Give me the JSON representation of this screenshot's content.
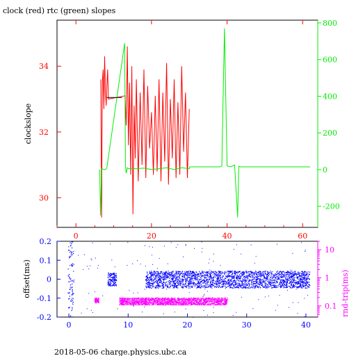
{
  "footer": "2018-05-06 charge.physics.ubc.ca",
  "colors": {
    "clock": "#ff0000",
    "rtc": "#00ee00",
    "offset": "#0000ff",
    "rndtrip": "#ff00ff",
    "black": "#000000"
  },
  "chart_data": [
    {
      "type": "line",
      "title": "clock (red) rtc (green) slopes",
      "xlabel": "",
      "ylabel": "clockslope",
      "y2label": "",
      "xlim": [
        -5,
        64
      ],
      "x_ticks": [
        0,
        20,
        40,
        60
      ],
      "ylim": [
        29.1,
        35.4
      ],
      "y_ticks": [
        30,
        32,
        34
      ],
      "y2lim": [
        -315,
        815
      ],
      "y2_ticks": [
        -200,
        0,
        200,
        400,
        600,
        800
      ],
      "series": [
        {
          "name": "clock",
          "axis": "left",
          "color": "#ff0000",
          "x": [
            6.6,
            6.8,
            7.0,
            7.2,
            7.4,
            7.6,
            7.8,
            8.0,
            8.2,
            8.4,
            8.6,
            13.0,
            13.3,
            13.6,
            13.9,
            14.2,
            14.5,
            14.8,
            15.1,
            15.4,
            15.7,
            16.0,
            16.5,
            17.0,
            17.5,
            18.0,
            18.5,
            19.0,
            19.5,
            20.0,
            20.5,
            21.0,
            21.5,
            22.0,
            22.5,
            23.0,
            23.5,
            24.0,
            24.5,
            25.0,
            25.5,
            26.0,
            26.5,
            27.0,
            27.5,
            28.0,
            28.5,
            29.0,
            29.5,
            30.0
          ],
          "y": [
            33.6,
            29.4,
            33.5,
            33.9,
            32.7,
            34.3,
            33.2,
            32.8,
            33.4,
            33.9,
            33.0,
            33.1,
            32.2,
            34.6,
            31.6,
            33.5,
            30.7,
            34.0,
            29.5,
            32.8,
            31.2,
            33.6,
            30.5,
            33.2,
            31.0,
            33.9,
            30.6,
            33.4,
            31.5,
            32.6,
            30.7,
            33.1,
            30.8,
            33.6,
            30.5,
            33.2,
            31.1,
            34.1,
            30.4,
            33.0,
            31.2,
            33.6,
            30.6,
            32.9,
            30.7,
            34.0,
            31.4,
            33.2,
            30.6,
            32.7
          ]
        },
        {
          "name": "rtc",
          "axis": "right",
          "color": "#00ee00",
          "x": [
            6.3,
            6.5,
            6.8,
            7.5,
            7.8,
            8.2,
            12.9,
            13.1,
            13.3,
            13.6,
            14.0,
            16.0,
            18.0,
            20.0,
            22.0,
            24.0,
            26.0,
            28.0,
            30.0,
            30.1,
            34.0,
            38.0,
            38.6,
            39.3,
            40.0,
            41.0,
            42.0,
            42.8,
            43.1,
            43.5,
            44.0,
            50.0,
            56.0,
            62.0
          ],
          "y": [
            0,
            -250,
            5,
            0,
            0,
            10,
            690,
            20,
            -20,
            10,
            5,
            5,
            8,
            0,
            5,
            10,
            0,
            10,
            5,
            15,
            15,
            15,
            20,
            770,
            20,
            15,
            25,
            -260,
            18,
            15,
            15,
            15,
            15,
            15
          ]
        },
        {
          "name": "",
          "axis": "left",
          "color": "#000000",
          "x": [
            8.2,
            12.2
          ],
          "y": [
            33.05,
            33.05
          ]
        }
      ]
    },
    {
      "type": "scatter",
      "title": "",
      "xlabel": "",
      "ylabel": "offset(ms)",
      "y2label": "rnd-trip(ms)",
      "y2scale": "log",
      "xlim": [
        -2,
        42
      ],
      "x_ticks": [
        0,
        10,
        20,
        30,
        40
      ],
      "ylim": [
        -0.2,
        0.2
      ],
      "y_ticks": [
        -0.2,
        -0.1,
        0,
        0.1,
        0.2
      ],
      "y_tick_labels": [
        "-0.2",
        "-0.1",
        "0",
        "0.1",
        "0.2"
      ],
      "y2lim": [
        0.04,
        20
      ],
      "y2_ticks": [
        0.1,
        1,
        10
      ],
      "y2_tick_labels": [
        "0.1",
        "1",
        "10"
      ],
      "series": [
        {
          "name": "offset",
          "axis": "left",
          "color": "#0000ff",
          "segments": [
            {
              "x": [
                -0.2,
                0.8
              ],
              "y": [
                -0.2,
                0.2
              ]
            },
            {
              "x": [
                6.5,
                8.0
              ],
              "y": [
                -0.035,
                0.035
              ]
            },
            {
              "x": [
                12.9,
                40.6
              ],
              "y": [
                -0.045,
                0.045
              ]
            }
          ]
        },
        {
          "name": "rnd-trip",
          "axis": "right",
          "color": "#ff00ff",
          "segments": [
            {
              "x": [
                4.3,
                5.0
              ],
              "y": [
                0.13,
                0.2
              ]
            },
            {
              "x": [
                8.5,
                26.7
              ],
              "y": [
                0.11,
                0.2
              ]
            }
          ]
        }
      ]
    }
  ]
}
